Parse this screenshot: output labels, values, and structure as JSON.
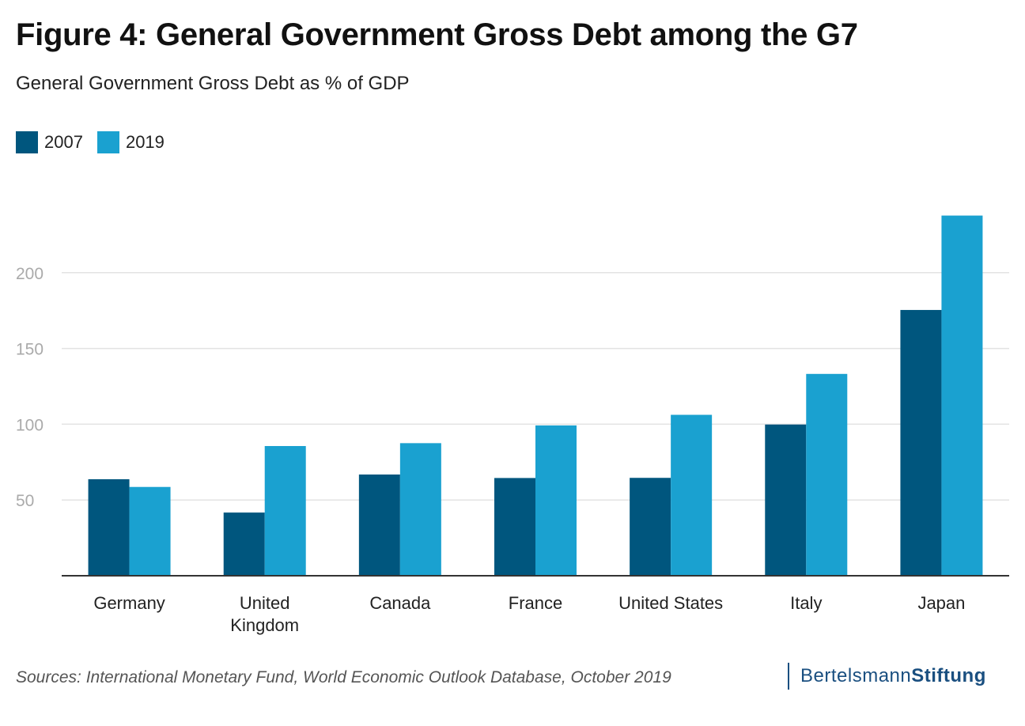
{
  "header": {
    "title": "Figure 4: General Government Gross Debt among the G7",
    "subtitle": "General Government Gross Debt as % of GDP"
  },
  "footer": {
    "source": "Sources: International Monetary Fund, World Economic Outlook Database, October 2019",
    "logo_part1": "Bertelsmann",
    "logo_part2": "Stiftung"
  },
  "colors": {
    "series_2007": "#00567e",
    "series_2019": "#1aa1d0",
    "grid": "#e3e3e3",
    "axis": "#333333",
    "tick_label": "#aaaaaa"
  },
  "chart_data": {
    "type": "bar",
    "title": "Figure 4: General Government Gross Debt among the G7",
    "subtitle": "General Government Gross Debt as % of GDP",
    "xlabel": "",
    "ylabel": "",
    "ylim": [
      0,
      238
    ],
    "yticks": [
      50,
      100,
      150,
      200
    ],
    "grid": true,
    "legend_position": "top-left",
    "categories": [
      [
        "Germany"
      ],
      [
        "United",
        "Kingdom"
      ],
      [
        "Canada"
      ],
      [
        "France"
      ],
      [
        "United States"
      ],
      [
        "Italy"
      ],
      [
        "Japan"
      ]
    ],
    "series": [
      {
        "name": "2007",
        "color": "#00567e",
        "values": [
          63.7,
          41.7,
          66.8,
          64.5,
          64.6,
          99.8,
          175.4
        ]
      },
      {
        "name": "2019",
        "color": "#1aa1d0",
        "values": [
          58.6,
          85.6,
          87.5,
          99.2,
          106.2,
          133.2,
          237.7
        ]
      }
    ]
  }
}
